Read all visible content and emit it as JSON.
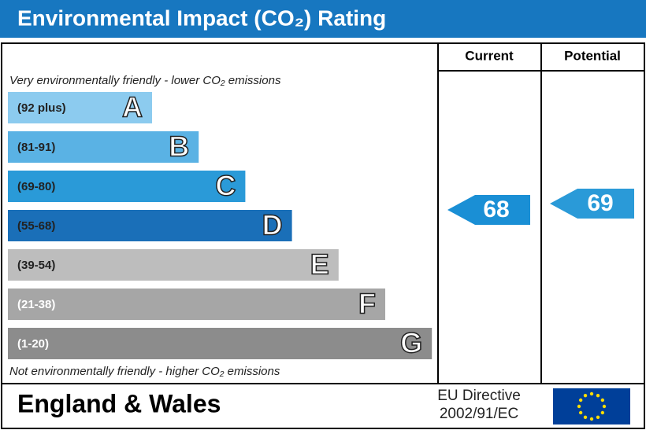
{
  "header": {
    "title": "Environmental Impact (CO₂) Rating"
  },
  "columns": [
    "Current",
    "Potential"
  ],
  "top_note": "Very environmentally friendly - lower CO₂ emissions",
  "bands": [
    {
      "range": "(92 plus)",
      "letter": "A"
    },
    {
      "range": "(81-91)",
      "letter": "B"
    },
    {
      "range": "(69-80)",
      "letter": "C"
    },
    {
      "range": "(55-68)",
      "letter": "D"
    },
    {
      "range": "(39-54)",
      "letter": "E"
    },
    {
      "range": "(21-38)",
      "letter": "F"
    },
    {
      "range": "(1-20)",
      "letter": "G"
    }
  ],
  "bottom_note": "Not environmentally friendly - higher CO₂ emissions",
  "ratings": {
    "current": 68,
    "potential": 69
  },
  "footer": {
    "region": "England & Wales",
    "directive": [
      "EU Directive",
      "2002/91/EC"
    ]
  }
}
